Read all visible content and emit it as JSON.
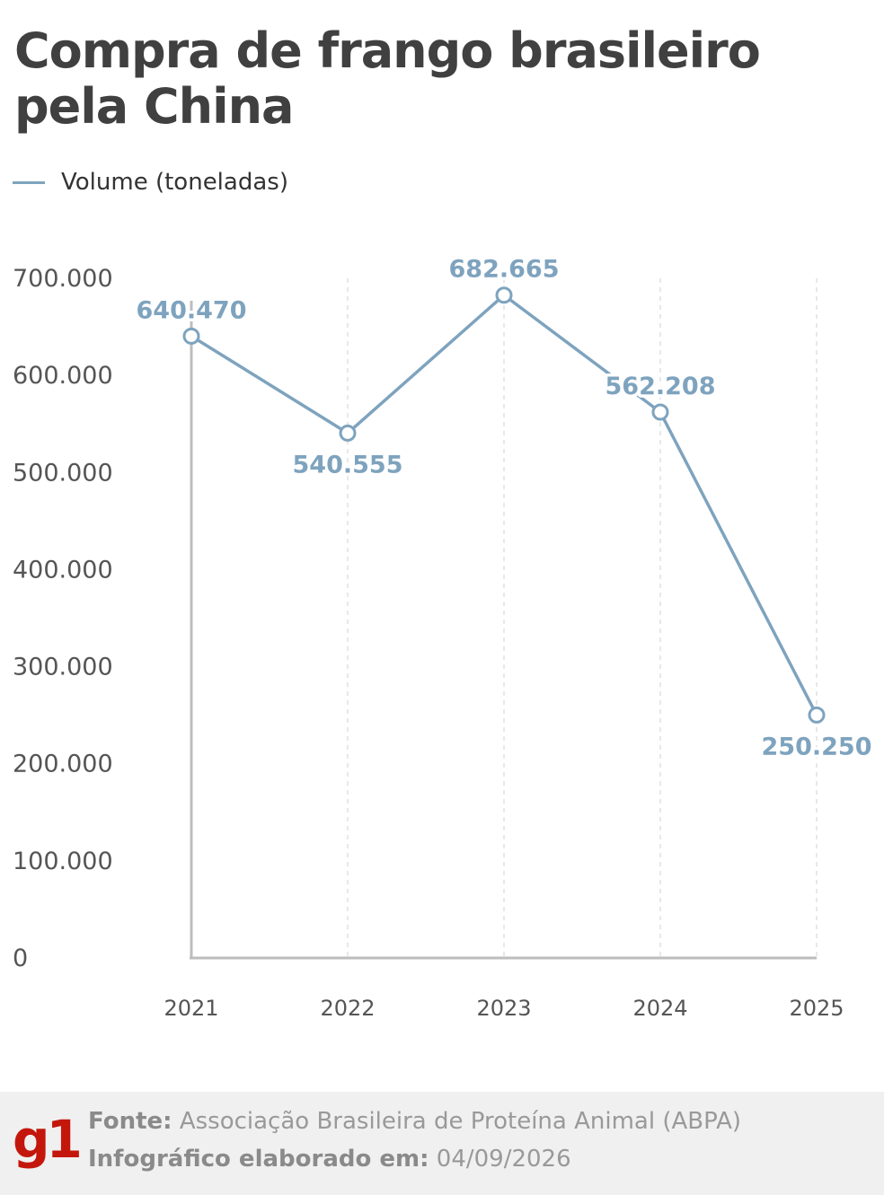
{
  "title": "Compra de frango brasileiro pela China",
  "legend": {
    "label": "Volume (toneladas)",
    "color": "#7ea3be"
  },
  "chart_data": {
    "type": "line",
    "x": [
      "2021",
      "2022",
      "2023",
      "2024",
      "2025"
    ],
    "series": [
      {
        "name": "Volume (toneladas)",
        "values": [
          640470,
          540555,
          682665,
          562208,
          250250
        ],
        "labels": [
          "640.470",
          "540.555",
          "682.665",
          "562.208",
          "250.250"
        ],
        "color": "#7ea3be"
      }
    ],
    "y_ticks": [
      {
        "value": 0,
        "label": "0"
      },
      {
        "value": 100000,
        "label": "100.000"
      },
      {
        "value": 200000,
        "label": "200.000"
      },
      {
        "value": 300000,
        "label": "300.000"
      },
      {
        "value": 400000,
        "label": "400.000"
      },
      {
        "value": 500000,
        "label": "500.000"
      },
      {
        "value": 600000,
        "label": "600.000"
      },
      {
        "value": 700000,
        "label": "700.000"
      }
    ],
    "ylim": [
      0,
      700000
    ],
    "grid": "vertical dashed"
  },
  "footer": {
    "logo": "g1",
    "logo_color": "#c4170c",
    "source_label": "Fonte:",
    "source_text": "Associação Brasileira de Proteína Animal (ABPA)",
    "date_label": "Infográfico elaborado em:",
    "date_text": "04/09/2026"
  }
}
